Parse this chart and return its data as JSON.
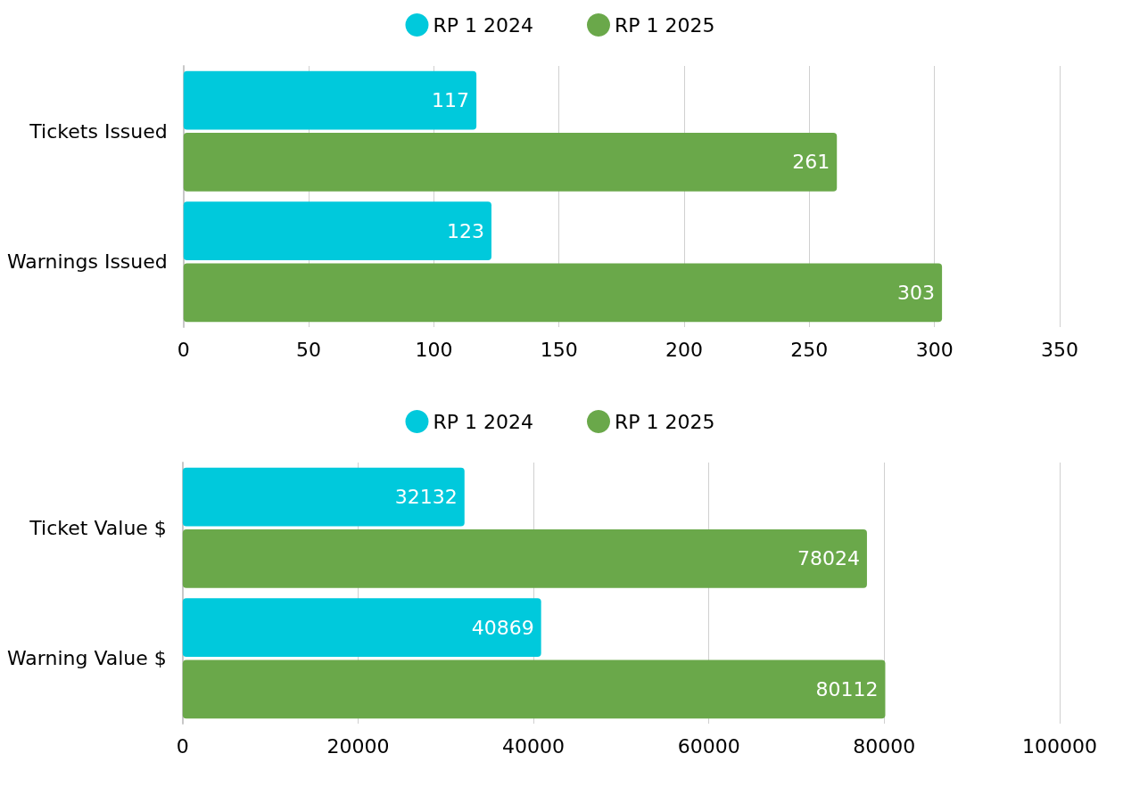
{
  "chart_data": [
    {
      "type": "bar",
      "orientation": "horizontal",
      "categories": [
        "Tickets Issued",
        "Warnings Issued"
      ],
      "series": [
        {
          "name": "RP 1 2024",
          "color": "#00c9dc",
          "values": [
            117,
            123
          ]
        },
        {
          "name": "RP 1 2025",
          "color": "#6aa84a",
          "values": [
            261,
            303
          ]
        }
      ],
      "xlim": [
        0,
        350
      ],
      "xticks": [
        0,
        50,
        100,
        150,
        200,
        250,
        300,
        350
      ],
      "grid": "x",
      "legend": "top",
      "data_labels": true
    },
    {
      "type": "bar",
      "orientation": "horizontal",
      "categories": [
        "Ticket Value $",
        "Warning Value $"
      ],
      "series": [
        {
          "name": "RP 1 2024",
          "color": "#00c9dc",
          "values": [
            32132,
            40869
          ]
        },
        {
          "name": "RP 1 2025",
          "color": "#6aa84a",
          "values": [
            78024,
            80112
          ]
        }
      ],
      "xlim": [
        0,
        100000
      ],
      "xticks": [
        0,
        20000,
        40000,
        60000,
        80000,
        100000
      ],
      "grid": "x",
      "legend": "top",
      "data_labels": true
    }
  ]
}
